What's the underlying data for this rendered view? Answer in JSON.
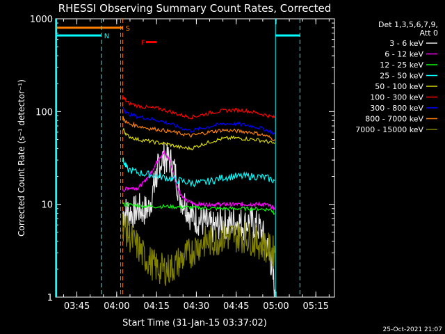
{
  "chart_data": {
    "type": "line",
    "title": "RHESSI Observing Summary Count Rates, Corrected",
    "xlabel": "Start Time (31-Jan-15 03:37:02)",
    "ylabel": "Corrected Count Rate (s⁻¹ detector⁻¹)",
    "y_scale": "log",
    "ylim": [
      1,
      1000
    ],
    "xlim_minutes_after_0337": [
      0,
      105
    ],
    "xticks": [
      "03:45",
      "04:00",
      "04:15",
      "04:30",
      "04:45",
      "05:00",
      "05:15"
    ],
    "yticks": [
      "1",
      "10",
      "100",
      "1000"
    ],
    "grid": false,
    "legend_header": [
      "Det 1,3,5,6,7,9,",
      "Att 0"
    ],
    "legend_position": "right",
    "footer": "25-Oct-2021 21:07",
    "series": [
      {
        "name": "3 - 6 keV",
        "color": "#e8e8e8",
        "x": [
          25.3,
          27,
          29,
          31,
          33,
          35,
          37,
          38,
          39,
          41,
          43,
          45,
          47,
          49,
          51,
          53,
          55,
          57,
          59,
          61,
          63,
          65,
          67,
          69,
          71,
          73,
          75,
          77,
          79,
          81,
          82.5
        ],
        "y": [
          8,
          8.5,
          8,
          9,
          8.5,
          9,
          15,
          20,
          28,
          32,
          30,
          22,
          12,
          10,
          7.5,
          7,
          6.5,
          6.2,
          5.5,
          6,
          6.5,
          6,
          6.5,
          6.5,
          6,
          6.5,
          6,
          5.5,
          4,
          2.5,
          1.2
        ]
      },
      {
        "name": "6 - 12 keV",
        "color": "#ff00ff",
        "x": [
          25.3,
          27,
          29,
          31,
          33,
          35,
          37,
          39,
          41,
          43,
          45,
          47,
          49,
          51,
          53,
          55,
          57,
          59,
          61,
          63,
          65,
          67,
          69,
          71,
          73,
          75,
          77,
          79,
          81,
          82.5
        ],
        "y": [
          14,
          15,
          15,
          15,
          17,
          20,
          25,
          32,
          36,
          30,
          18,
          13,
          11,
          10.5,
          10,
          10,
          10,
          10,
          10,
          10,
          10,
          10,
          10,
          10,
          10,
          10,
          10,
          10,
          9.5,
          9
        ]
      },
      {
        "name": "12 - 25 keV",
        "color": "#00ff00",
        "x": [
          25.3,
          29,
          33,
          37,
          41,
          45,
          49,
          53,
          57,
          61,
          65,
          69,
          73,
          77,
          81,
          82.5
        ],
        "y": [
          10,
          9.8,
          9.6,
          9.5,
          9.5,
          9.4,
          9.3,
          9.2,
          9.1,
          9,
          9,
          9,
          9,
          8.9,
          8.8,
          8
        ]
      },
      {
        "name": "25 - 50 keV",
        "color": "#00ffff",
        "x": [
          25.3,
          27,
          31,
          35,
          39,
          43,
          47,
          51,
          55,
          59,
          63,
          67,
          71,
          75,
          79,
          82.5
        ],
        "y": [
          30,
          24,
          22,
          21,
          20,
          19,
          18,
          17,
          17,
          18,
          19.5,
          20,
          20,
          20,
          19.5,
          18
        ]
      },
      {
        "name": "50 - 100 keV",
        "color": "#d8d800",
        "x": [
          25.3,
          27,
          31,
          35,
          39,
          43,
          47,
          51,
          55,
          59,
          63,
          67,
          71,
          75,
          79,
          82.5
        ],
        "y": [
          65,
          55,
          50,
          48,
          46,
          44,
          41,
          40,
          44,
          48,
          51,
          52,
          51,
          50,
          48,
          45
        ]
      },
      {
        "name": "100 - 300 keV",
        "color": "#ff0000",
        "x": [
          25.3,
          27,
          31,
          35,
          39,
          43,
          47,
          51,
          55,
          59,
          63,
          67,
          71,
          75,
          79,
          82.5
        ],
        "y": [
          145,
          125,
          115,
          110,
          108,
          100,
          92,
          87,
          92,
          98,
          102,
          104,
          103,
          98,
          92,
          86
        ]
      },
      {
        "name": "300 - 800 keV",
        "color": "#0000ff",
        "x": [
          25.3,
          27,
          31,
          35,
          39,
          43,
          47,
          51,
          55,
          59,
          63,
          67,
          71,
          75,
          79,
          82.5
        ],
        "y": [
          110,
          95,
          88,
          84,
          80,
          74,
          67,
          62,
          66,
          70,
          74,
          74,
          72,
          69,
          64,
          58
        ]
      },
      {
        "name": "800 - 7000 keV",
        "color": "#ff8000",
        "x": [
          25.3,
          27,
          31,
          35,
          39,
          43,
          47,
          51,
          55,
          59,
          63,
          67,
          71,
          75,
          79,
          82.5
        ],
        "y": [
          85,
          75,
          70,
          66,
          64,
          61,
          58,
          55,
          58,
          61,
          63,
          62,
          61,
          59,
          55,
          50
        ]
      },
      {
        "name": "7000 - 15000 keV",
        "color": "#808000",
        "x": [
          25.3,
          27,
          29,
          31,
          33,
          35,
          37,
          39,
          41,
          43,
          45,
          47,
          49,
          51,
          53,
          55,
          57,
          59,
          61,
          63,
          65,
          67,
          69,
          71,
          73,
          75,
          77,
          79,
          81,
          82.5
        ],
        "y": [
          6,
          5,
          4,
          3.5,
          2.8,
          2.5,
          2.2,
          2,
          2,
          2,
          2.2,
          2.5,
          2.8,
          3,
          3.5,
          3.8,
          4,
          4,
          4.2,
          4.5,
          4.5,
          4.5,
          4.5,
          4.5,
          4.3,
          4,
          3.8,
          3.5,
          3.2,
          3
        ]
      }
    ],
    "flags": [
      {
        "label": "S",
        "color": "#ff8000",
        "value": 800,
        "x_start": 0,
        "x_end": 25.3,
        "vline_at": [
          24.5,
          25.3
        ]
      },
      {
        "label": "N",
        "color": "#00ffff",
        "value": 660,
        "x_start": 0,
        "x_end": 17.2,
        "vline_at": [
          17.2,
          82.8,
          92
        ]
      },
      {
        "label": "F",
        "color": "#ff0000",
        "value": 560,
        "x_start": 34,
        "x_end": 38
      }
    ],
    "night_intervals": [
      {
        "x_start": 0,
        "x_end": 17.2,
        "value": 660
      },
      {
        "x_start": 82.8,
        "x_end": 92,
        "value": 660
      }
    ]
  }
}
